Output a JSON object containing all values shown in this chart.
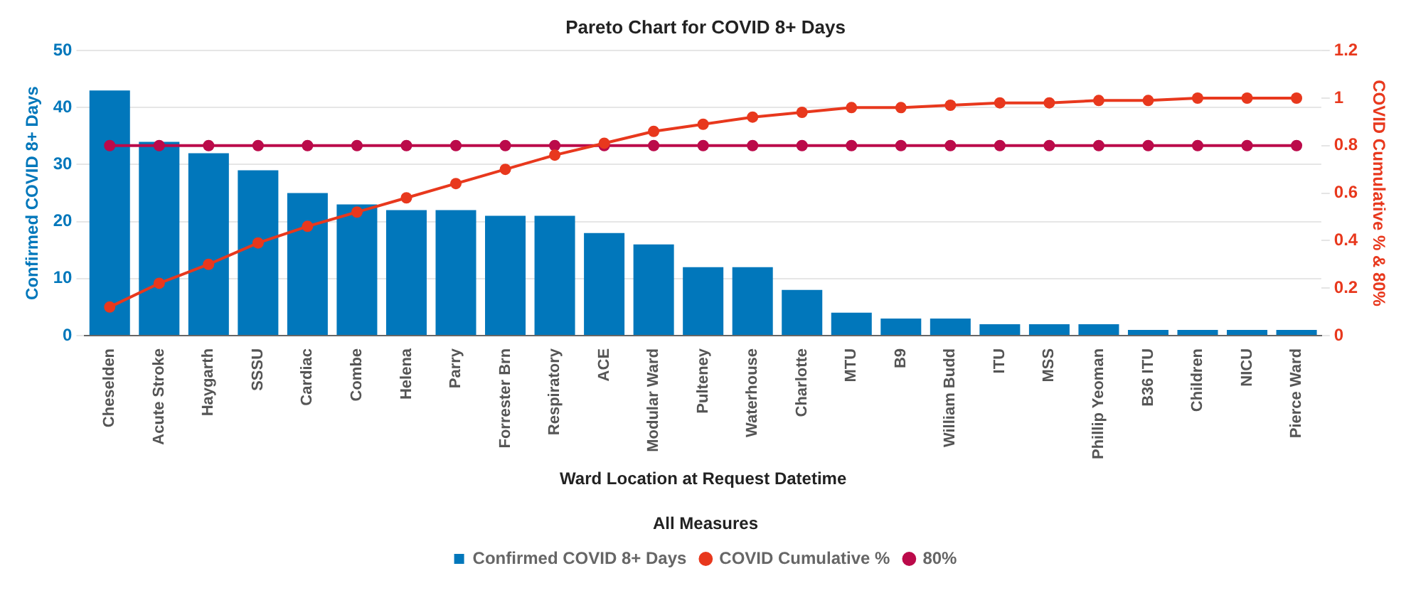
{
  "chart_data": {
    "type": "bar",
    "title": "Pareto Chart for COVID 8+ Days",
    "xlabel": "Ward Location at Request Datetime",
    "ylabel": "Confirmed COVID 8+ Days",
    "y2label": "COVID Cumulative % & 80%",
    "legend_title": "All Measures",
    "legend": "bottom",
    "grid": "y",
    "marker": "circle",
    "categories": [
      "Cheselden",
      "Acute Stroke",
      "Haygarth",
      "SSSU",
      "Cardiac",
      "Combe",
      "Helena",
      "Parry",
      "Forrester Brn",
      "Respiratory",
      "ACE",
      "Modular Ward",
      "Pulteney",
      "Waterhouse",
      "Charlotte",
      "MTU",
      "B9",
      "William Budd",
      "ITU",
      "MSS",
      "Phillip Yeoman",
      "B36 ITU",
      "Children",
      "NICU",
      "Pierce Ward"
    ],
    "series": [
      {
        "name": "Confirmed COVID 8+ Days",
        "color": "#0177bb",
        "values": [
          43,
          34,
          32,
          29,
          25,
          23,
          22,
          22,
          21,
          21,
          18,
          16,
          12,
          12,
          8,
          4,
          3,
          3,
          2,
          2,
          2,
          1,
          1,
          1,
          1
        ]
      },
      {
        "name": "COVID Cumulative %",
        "type": "line",
        "axis": "y2",
        "color": "#e8381d",
        "values": [
          0.12,
          0.22,
          0.3,
          0.39,
          0.46,
          0.52,
          0.58,
          0.64,
          0.7,
          0.76,
          0.81,
          0.86,
          0.89,
          0.92,
          0.94,
          0.96,
          0.96,
          0.97,
          0.98,
          0.98,
          0.99,
          0.99,
          1.0,
          1.0,
          1.0
        ]
      },
      {
        "name": "80%",
        "type": "line",
        "axis": "y2",
        "color": "#bb0a4a",
        "values": [
          0.8,
          0.8,
          0.8,
          0.8,
          0.8,
          0.8,
          0.8,
          0.8,
          0.8,
          0.8,
          0.8,
          0.8,
          0.8,
          0.8,
          0.8,
          0.8,
          0.8,
          0.8,
          0.8,
          0.8,
          0.8,
          0.8,
          0.8,
          0.8,
          0.8
        ]
      }
    ],
    "ylim": [
      0,
      50
    ],
    "yticks": [
      0,
      10,
      20,
      30,
      40,
      50
    ],
    "y2lim": [
      0,
      1.2
    ],
    "y2ticks": [
      0,
      0.2,
      0.4,
      0.6,
      0.8,
      1,
      1.2
    ]
  }
}
